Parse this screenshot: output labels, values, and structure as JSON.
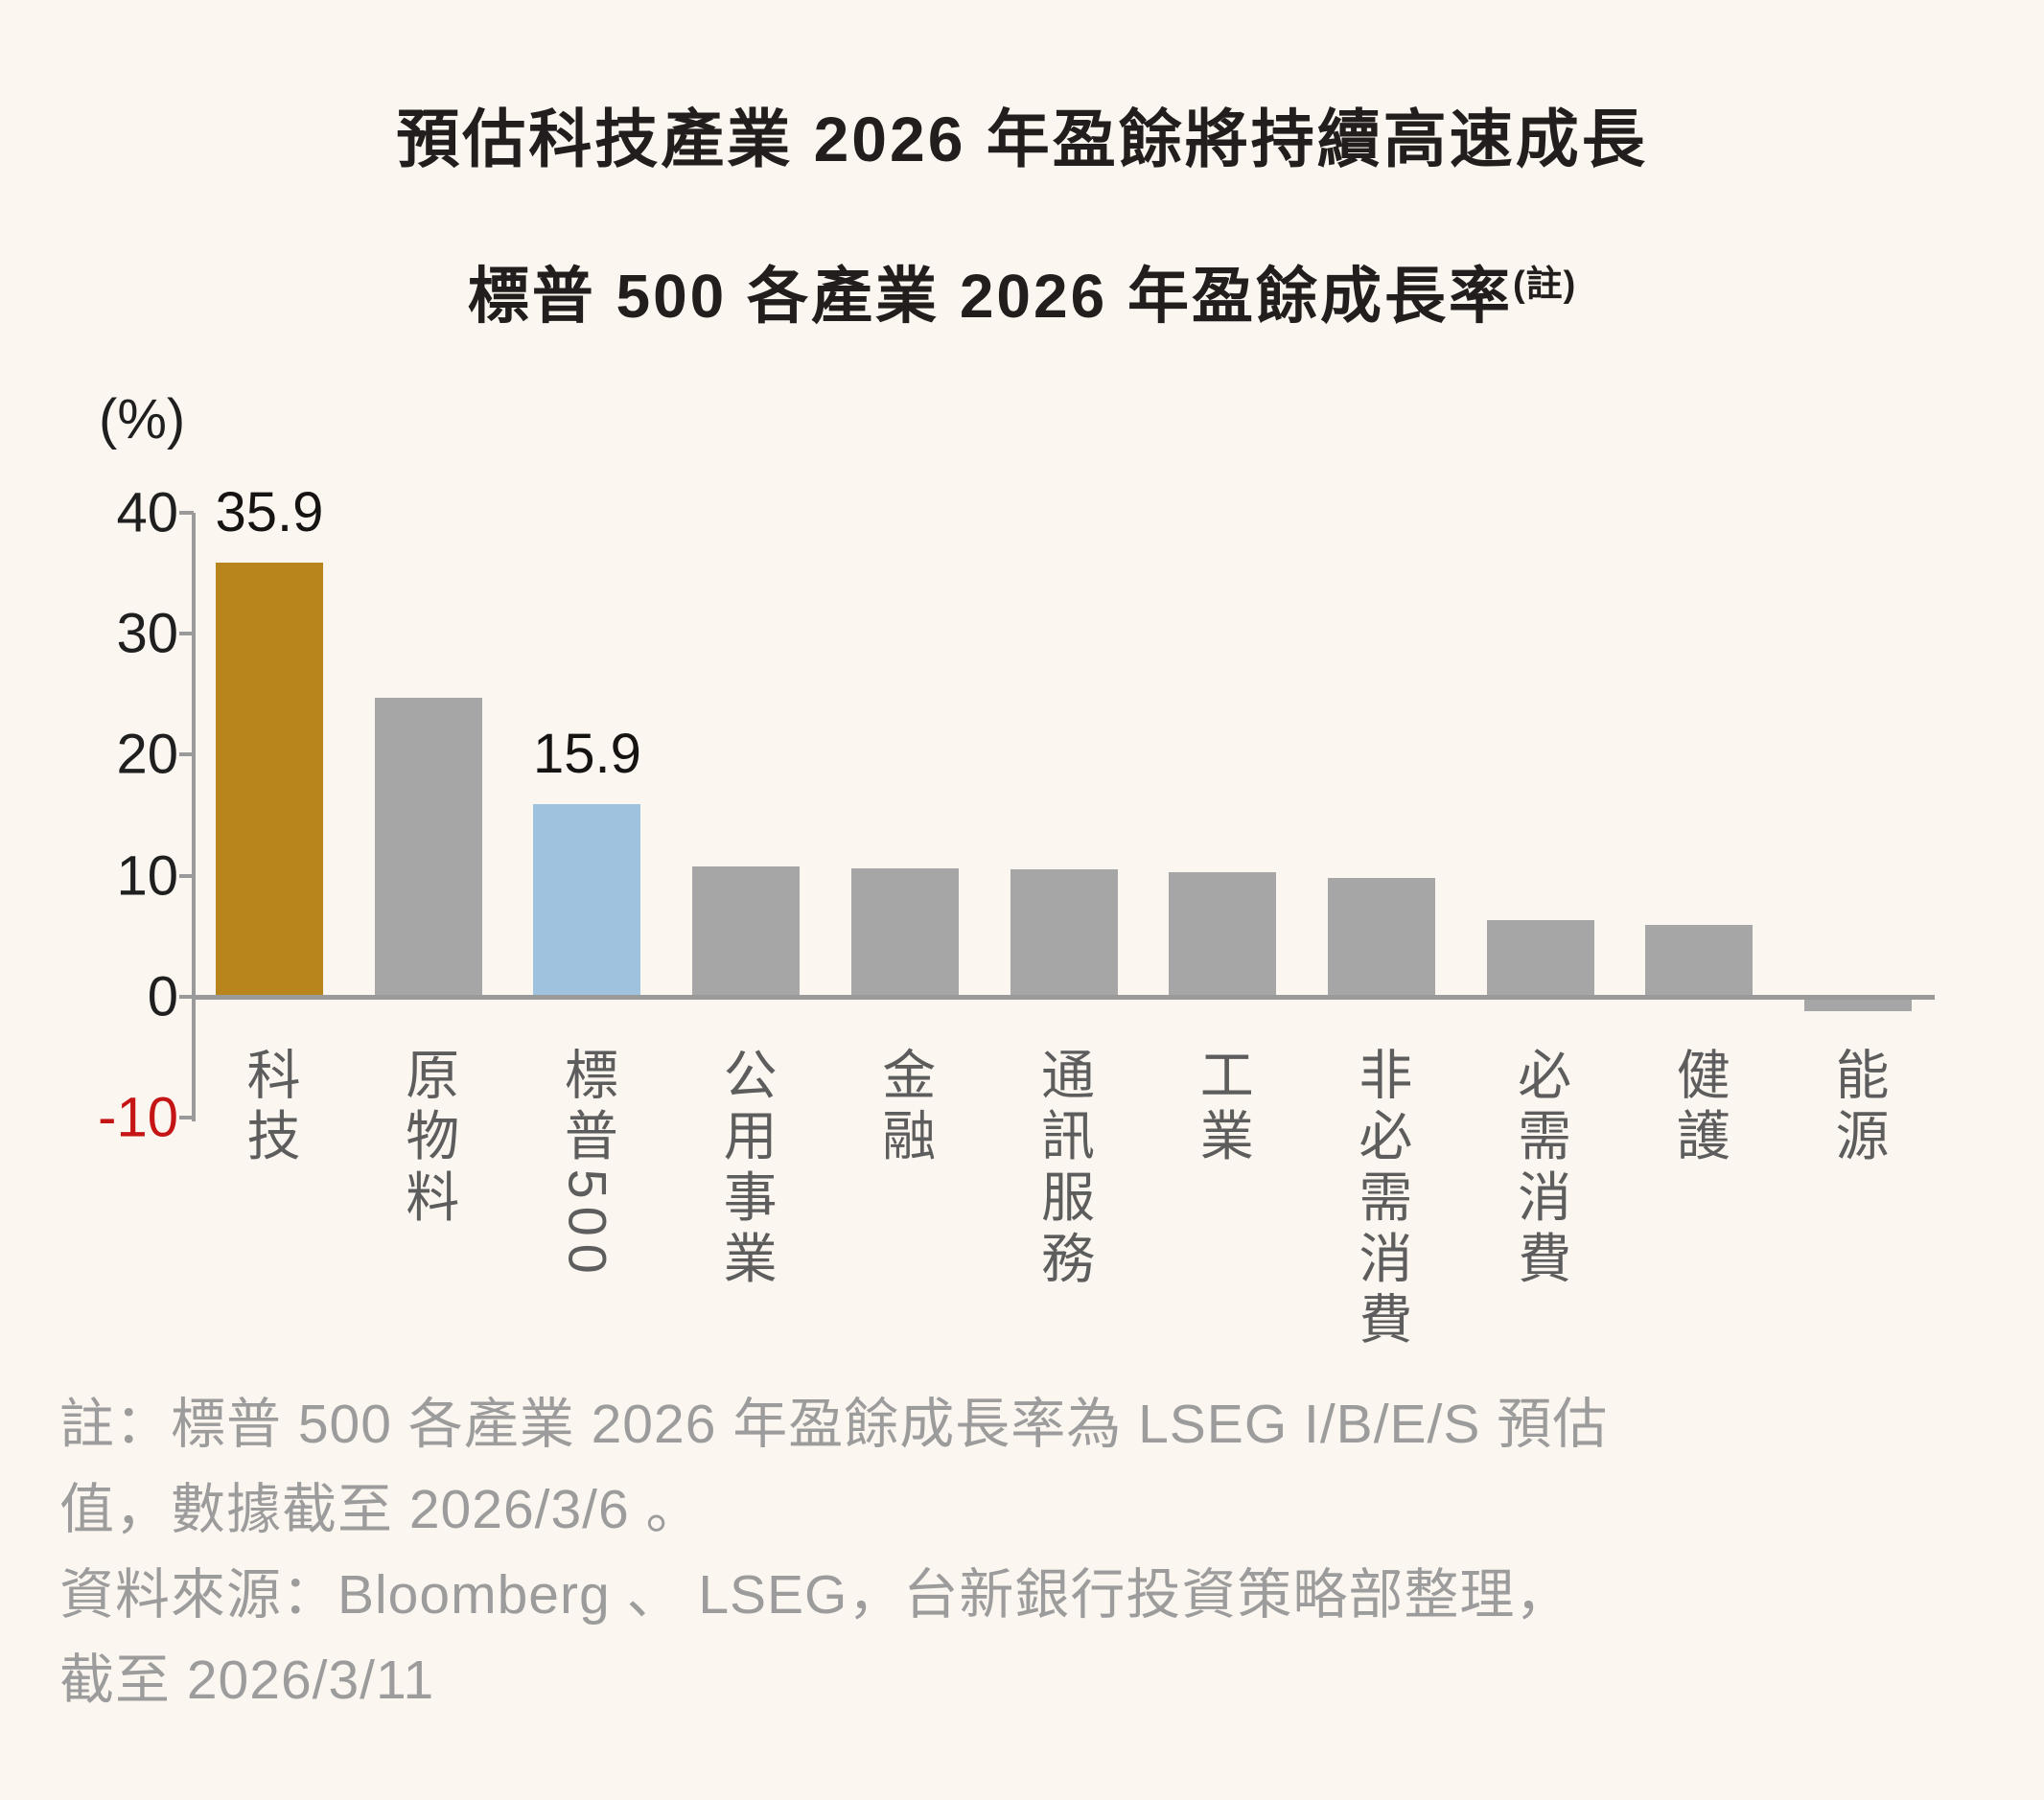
{
  "page": {
    "title": "預估科技產業 2026 年盈餘將持續高速成長",
    "subtitle": "標普 500 各產業 2026 年盈餘成長率",
    "subtitle_note_marker": "(註)"
  },
  "chart_data": {
    "type": "bar",
    "title": "預估科技產業 2026 年盈餘將持續高速成長",
    "subtitle": "標普 500 各產業 2026 年盈餘成長率(註)",
    "ylabel": "(%)",
    "xlabel": "",
    "ylim": [
      -10,
      40
    ],
    "y_ticks": [
      40,
      30,
      20,
      10,
      0,
      -10
    ],
    "grid": false,
    "legend_position": "none",
    "categories": [
      "科技",
      "原物料",
      "標普500",
      "公用事業",
      "金融",
      "通訊服務",
      "工業",
      "非必需消費",
      "必需消費",
      "健護",
      "能源"
    ],
    "values": [
      35.9,
      24.7,
      15.9,
      10.8,
      10.6,
      10.5,
      10.3,
      9.8,
      6.3,
      5.9,
      -1.2
    ],
    "data_labels": [
      "35.9",
      "",
      "15.9",
      "",
      "",
      "",
      "",
      "",
      "",
      "",
      ""
    ],
    "bar_colors": [
      "#b8841c",
      "#a6a6a6",
      "#9fc3df",
      "#a6a6a6",
      "#a6a6a6",
      "#a6a6a6",
      "#a6a6a6",
      "#a6a6a6",
      "#a6a6a6",
      "#a6a6a6",
      "#a6a6a6"
    ],
    "colors": {
      "background": "#fcf6f0",
      "highlight_gold": "#b8841c",
      "highlight_blue": "#9fc3df",
      "bar_gray": "#a6a6a6",
      "axis": "#9a9a9a",
      "tick_label": "#1f1f1f",
      "negative_tick_label": "#c51414",
      "category_label": "#5d5d5d",
      "note_text": "#9c9c9c"
    }
  },
  "footnotes": {
    "lines": [
      "註：標普 500 各產業 2026 年盈餘成長率為 LSEG I/B/E/S 預估",
      "值，數據截至 2026/3/6 。",
      "資料來源：Bloomberg 、 LSEG，台新銀行投資策略部整理，",
      "截至 2026/3/11"
    ]
  }
}
